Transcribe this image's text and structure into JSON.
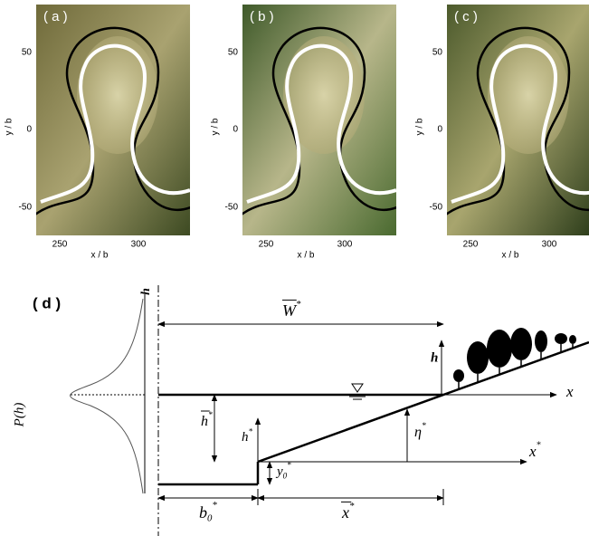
{
  "panels": [
    {
      "label": "( a )",
      "y_ticks": [
        "50",
        "0",
        "-50"
      ],
      "x_ticks": [
        "250",
        "300"
      ],
      "y_label": "y / b",
      "x_label": "x / b"
    },
    {
      "label": "( b )",
      "y_ticks": [
        "50",
        "0",
        "-50"
      ],
      "x_ticks": [
        "250",
        "300"
      ],
      "y_label": "y / b",
      "x_label": "x / b"
    },
    {
      "label": "( c )",
      "y_ticks": [
        "50",
        "0",
        "-50"
      ],
      "x_ticks": [
        "250",
        "300"
      ],
      "y_label": "y / b",
      "x_label": "x / b"
    }
  ],
  "diagram": {
    "label": "( d )",
    "density_axis": "h",
    "density_label": "P(h)",
    "width": {
      "base": "W",
      "sup": "*"
    },
    "tree_height": "h",
    "water_depth": {
      "base": "h",
      "sup": "*"
    },
    "step_height": {
      "base": "h",
      "sup": "*"
    },
    "elevation": {
      "base": "η",
      "sup": "*"
    },
    "x_axis": "x",
    "x_star": {
      "base": "x",
      "sup": "*"
    },
    "y0": {
      "base": "y",
      "sub": "0",
      "sup": "*"
    },
    "b0": {
      "base": "b",
      "sub": "0",
      "sup": "*"
    },
    "x_bar": {
      "base": "x",
      "sup": "*"
    }
  }
}
